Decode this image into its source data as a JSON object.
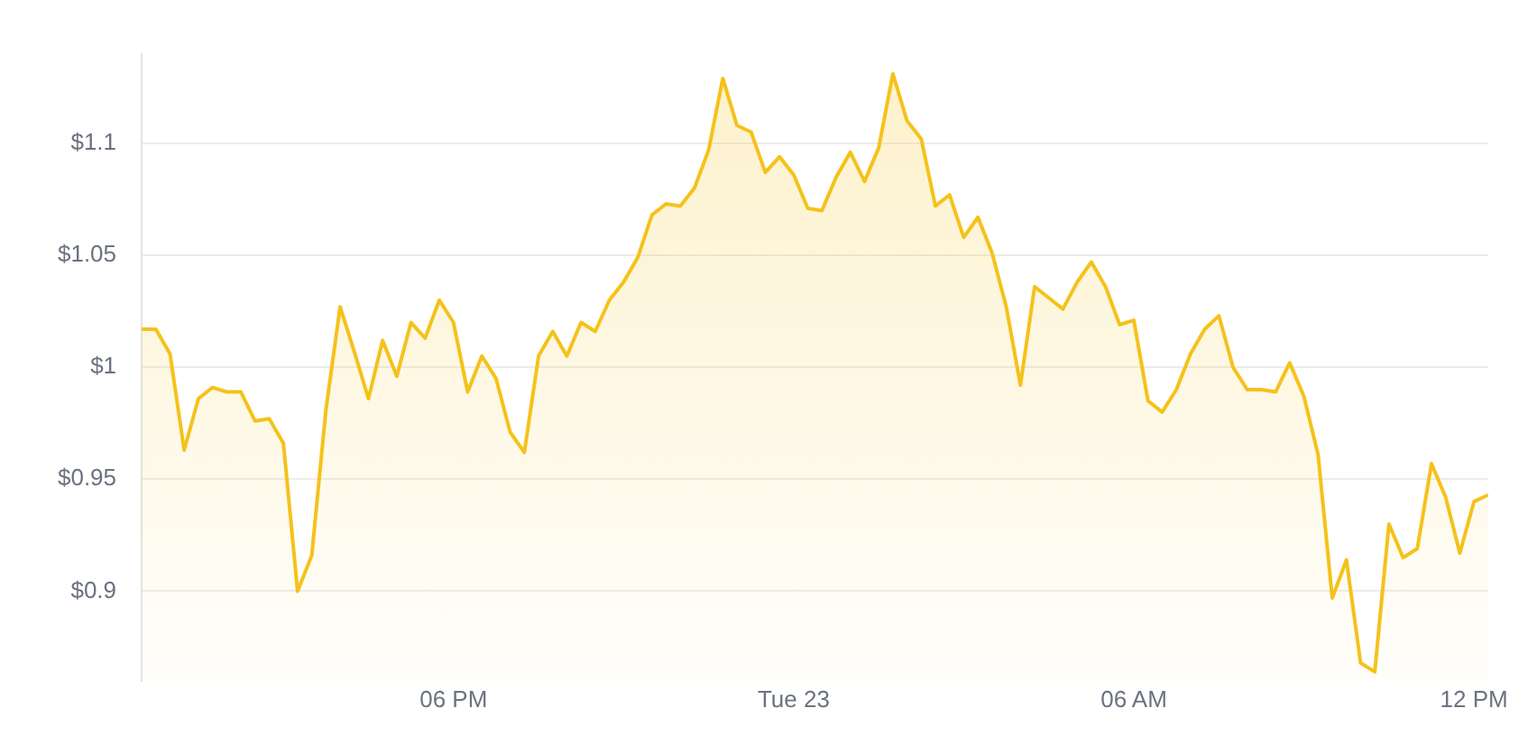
{
  "chart_data": {
    "type": "area",
    "categories": [
      null,
      null,
      null,
      null,
      null,
      null,
      null,
      null,
      null,
      null,
      null,
      null,
      null,
      null,
      null,
      null,
      null,
      null,
      null,
      null,
      null,
      null,
      "06 PM",
      null,
      null,
      null,
      null,
      null,
      null,
      null,
      null,
      null,
      null,
      null,
      null,
      null,
      null,
      null,
      null,
      null,
      null,
      null,
      null,
      null,
      null,
      null,
      "Tue 23",
      null,
      null,
      null,
      null,
      null,
      null,
      null,
      null,
      null,
      null,
      null,
      null,
      null,
      null,
      null,
      null,
      null,
      null,
      null,
      null,
      null,
      null,
      null,
      "06 AM",
      null,
      null,
      null,
      null,
      null,
      null,
      null,
      null,
      null,
      null,
      null,
      null,
      null,
      null,
      null,
      null,
      null,
      null,
      null,
      null,
      null,
      null,
      null,
      "12 PM",
      null
    ],
    "series": [
      {
        "color": "#f5c21b",
        "values": [
          1.017,
          1.017,
          1.006,
          0.963,
          0.986,
          0.991,
          0.989,
          0.989,
          0.976,
          0.977,
          0.966,
          0.9,
          0.916,
          0.981,
          1.027,
          1.007,
          0.986,
          1.012,
          0.996,
          1.02,
          1.013,
          1.03,
          1.02,
          0.989,
          1.005,
          0.995,
          0.971,
          0.962,
          1.005,
          1.016,
          1.005,
          1.02,
          1.016,
          1.03,
          1.038,
          1.049,
          1.068,
          1.073,
          1.072,
          1.08,
          1.097,
          1.129,
          1.108,
          1.105,
          1.087,
          1.094,
          1.086,
          1.071,
          1.07,
          1.085,
          1.096,
          1.083,
          1.098,
          1.131,
          1.11,
          1.102,
          1.072,
          1.077,
          1.058,
          1.067,
          1.051,
          1.027,
          0.992,
          1.036,
          1.031,
          1.026,
          1.038,
          1.047,
          1.036,
          1.019,
          1.021,
          0.985,
          0.98,
          0.99,
          1.006,
          1.017,
          1.023,
          1,
          0.99,
          0.99,
          0.989,
          1.002,
          0.987,
          0.961,
          0.897,
          0.914,
          0.868,
          0.864,
          0.93,
          0.915,
          0.919,
          0.957,
          0.942,
          0.917,
          0.94,
          0.943
        ]
      }
    ],
    "ylim": [
      0.86,
      1.14
    ],
    "yticks": [
      {
        "value": 0.9,
        "label": "$0.9"
      },
      {
        "value": 0.95,
        "label": "$0.95"
      },
      {
        "value": 1,
        "label": "$1"
      },
      {
        "value": 1.05,
        "label": "$1.05"
      },
      {
        "value": 1.1,
        "label": "$1.1"
      }
    ],
    "grid": "y",
    "legend": false,
    "marker": "none",
    "line_style": "solid"
  }
}
